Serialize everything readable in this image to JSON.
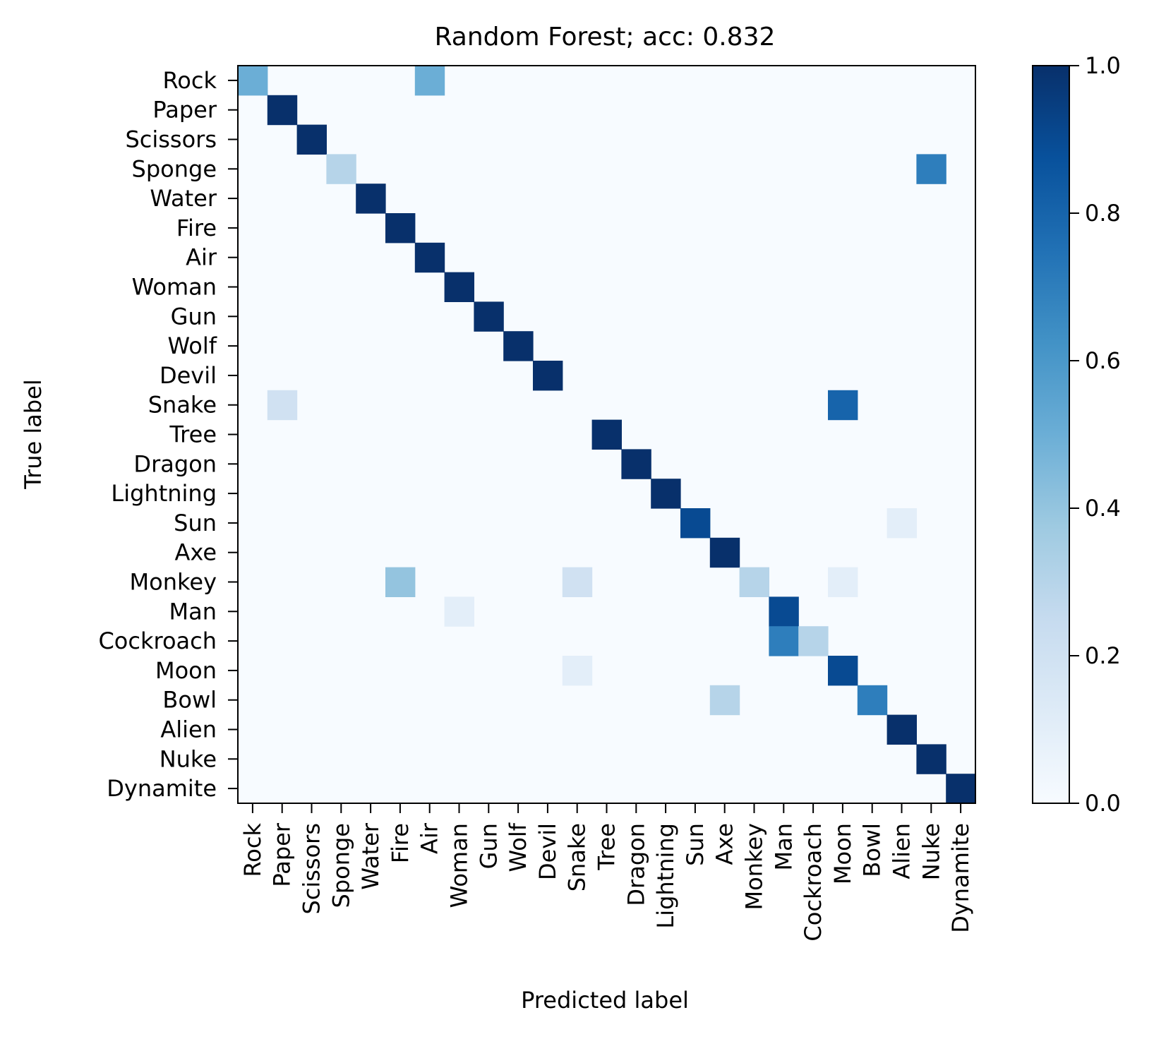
{
  "chart_data": {
    "type": "heatmap",
    "title": "Random Forest; acc: 0.832",
    "xlabel": "Predicted label",
    "ylabel": "True label",
    "labels": [
      "Rock",
      "Paper",
      "Scissors",
      "Sponge",
      "Water",
      "Fire",
      "Air",
      "Woman",
      "Gun",
      "Wolf",
      "Devil",
      "Snake",
      "Tree",
      "Dragon",
      "Lightning",
      "Sun",
      "Axe",
      "Monkey",
      "Man",
      "Cockroach",
      "Moon",
      "Bowl",
      "Alien",
      "Nuke",
      "Dynamite"
    ],
    "colormap": "Blues",
    "vmin": 0.0,
    "vmax": 1.0,
    "colorbar_ticks": [
      "0.0",
      "0.2",
      "0.4",
      "0.6",
      "0.8",
      "1.0"
    ],
    "cells": [
      {
        "row": 0,
        "col": 0,
        "value": 0.5
      },
      {
        "row": 0,
        "col": 6,
        "value": 0.5
      },
      {
        "row": 1,
        "col": 1,
        "value": 1.0
      },
      {
        "row": 2,
        "col": 2,
        "value": 1.0
      },
      {
        "row": 3,
        "col": 3,
        "value": 0.3
      },
      {
        "row": 3,
        "col": 23,
        "value": 0.7
      },
      {
        "row": 4,
        "col": 4,
        "value": 1.0
      },
      {
        "row": 5,
        "col": 5,
        "value": 1.0
      },
      {
        "row": 6,
        "col": 6,
        "value": 1.0
      },
      {
        "row": 7,
        "col": 7,
        "value": 1.0
      },
      {
        "row": 8,
        "col": 8,
        "value": 1.0
      },
      {
        "row": 9,
        "col": 9,
        "value": 1.0
      },
      {
        "row": 10,
        "col": 10,
        "value": 1.0
      },
      {
        "row": 11,
        "col": 1,
        "value": 0.2
      },
      {
        "row": 11,
        "col": 20,
        "value": 0.8
      },
      {
        "row": 12,
        "col": 12,
        "value": 1.0
      },
      {
        "row": 13,
        "col": 13,
        "value": 1.0
      },
      {
        "row": 14,
        "col": 14,
        "value": 1.0
      },
      {
        "row": 15,
        "col": 15,
        "value": 0.9
      },
      {
        "row": 15,
        "col": 22,
        "value": 0.1
      },
      {
        "row": 16,
        "col": 16,
        "value": 1.0
      },
      {
        "row": 17,
        "col": 5,
        "value": 0.4
      },
      {
        "row": 17,
        "col": 11,
        "value": 0.2
      },
      {
        "row": 17,
        "col": 17,
        "value": 0.3
      },
      {
        "row": 17,
        "col": 20,
        "value": 0.1
      },
      {
        "row": 18,
        "col": 7,
        "value": 0.1
      },
      {
        "row": 18,
        "col": 18,
        "value": 0.9
      },
      {
        "row": 19,
        "col": 18,
        "value": 0.7
      },
      {
        "row": 19,
        "col": 19,
        "value": 0.3
      },
      {
        "row": 20,
        "col": 11,
        "value": 0.1
      },
      {
        "row": 20,
        "col": 20,
        "value": 0.9
      },
      {
        "row": 21,
        "col": 16,
        "value": 0.3
      },
      {
        "row": 21,
        "col": 21,
        "value": 0.7
      },
      {
        "row": 22,
        "col": 22,
        "value": 1.0
      },
      {
        "row": 23,
        "col": 23,
        "value": 1.0
      },
      {
        "row": 24,
        "col": 24,
        "value": 1.0
      }
    ]
  }
}
